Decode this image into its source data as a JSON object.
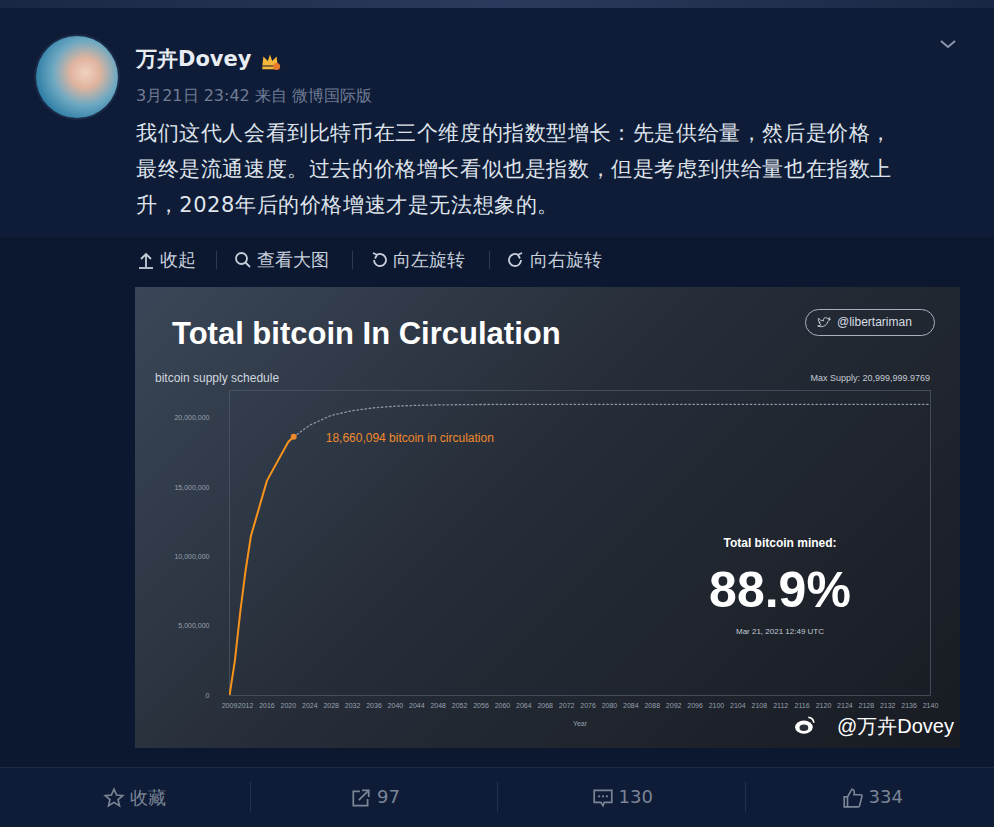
{
  "post": {
    "author": "万卉Dovey",
    "meta": "3月21日 23:42 来自 微博国际版",
    "body": [
      "我们这代人会看到比特币在三个维度的指数型增长：先是供给量，然后是价格，",
      "最终是流通速度。过去的价格增长看似也是指数，但是考虑到供给量也在指数上",
      "升，2028年后的价格增速才是无法想象的。"
    ]
  },
  "toolbar": [
    "收起",
    "查看大图",
    "向左旋转",
    "向右旋转"
  ],
  "chart_data": {
    "type": "line",
    "title": "Total bitcoin In Circulation",
    "subtitle": "bitcoin supply schedule",
    "handle": "@libertariman",
    "max_supply_label": "Max Supply: 20,999,999.9769",
    "x_label": "Year",
    "x": [
      2009,
      2010,
      2011,
      2012,
      2013,
      2016,
      2020,
      2021,
      2024,
      2028,
      2032,
      2036,
      2040,
      2044,
      2048,
      2056,
      2064,
      2080,
      2100,
      2140
    ],
    "series": [
      {
        "color": "#f7931a",
        "line_style": "solid",
        "values": [
          0,
          2500000,
          6000000,
          9000000,
          11500000,
          15500000,
          18300000,
          18660094,
          null,
          null,
          null,
          null,
          null,
          null,
          null,
          null,
          null,
          null,
          null,
          null
        ]
      },
      {
        "color": "#8e97a4",
        "line_style": "dotted",
        "values": [
          null,
          null,
          null,
          null,
          null,
          null,
          null,
          18660094,
          19500000,
          20200000,
          20550000,
          20750000,
          20870000,
          20930000,
          20960000,
          20990000,
          21000000,
          21000000,
          21000000,
          21000000
        ]
      }
    ],
    "xlim": [
      2009,
      2140
    ],
    "xticks": [
      2009,
      2012,
      2016,
      2020,
      2024,
      2028,
      2032,
      2036,
      2040,
      2044,
      2048,
      2052,
      2056,
      2060,
      2064,
      2068,
      2072,
      2076,
      2080,
      2084,
      2088,
      2092,
      2096,
      2100,
      2104,
      2108,
      2112,
      2116,
      2120,
      2124,
      2128,
      2132,
      2136,
      2140
    ],
    "ylim": [
      0,
      22000000
    ],
    "yticks": [
      0,
      {
        "value": 5000000,
        "label": "5,000,000"
      },
      {
        "value": 10000000,
        "label": "10,000,000"
      },
      {
        "value": 15000000,
        "label": "15,000,000"
      },
      {
        "value": 20000000,
        "label": "20,000,000"
      }
    ],
    "grid": false,
    "annotations": [
      {
        "text": "18,660,094 bitcoin in circulation",
        "x": 2021,
        "y": 18660094,
        "color": "#f08a2c",
        "marker": "dot"
      }
    ],
    "stat": {
      "label": "Total bitcoin mined:",
      "value": "88.9%",
      "date": "Mar 21, 2021 12:49 UTC"
    }
  },
  "watermark": "@万卉Dovey",
  "actions": {
    "favorite": "收藏",
    "reposts": 97,
    "comments": 130,
    "likes": 334
  }
}
